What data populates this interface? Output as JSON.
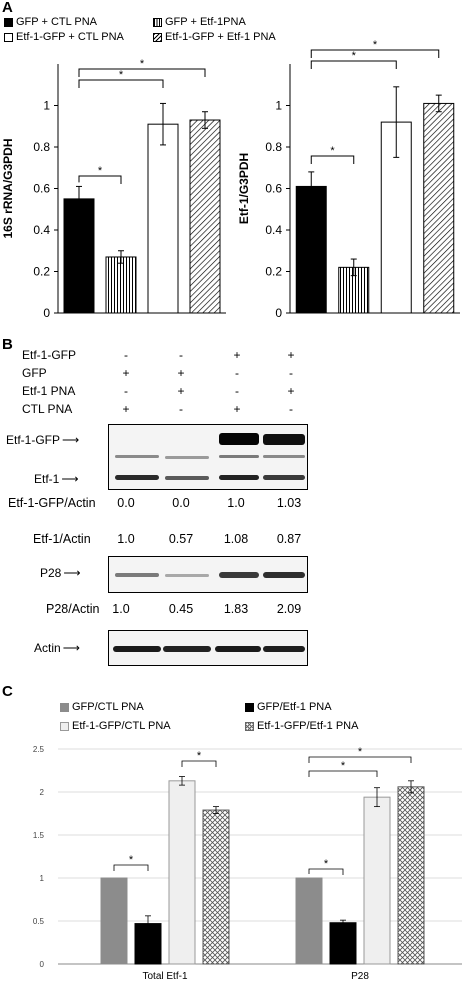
{
  "panels": {
    "a": "A",
    "b": "B",
    "c": "C"
  },
  "panelA": {
    "legend": [
      {
        "label": "GFP + CTL PNA",
        "style": "black"
      },
      {
        "label": "GFP + Etf-1PNA",
        "style": "vstripe"
      },
      {
        "label": "Etf-1-GFP + CTL PNA",
        "style": "white"
      },
      {
        "label": "Etf-1-GFP + Etf-1 PNA",
        "style": "dstripe"
      }
    ]
  },
  "panelB": {
    "treatments": [
      {
        "label": "Etf-1-GFP",
        "values": [
          "-",
          "-",
          "+",
          "+"
        ]
      },
      {
        "label": "GFP",
        "values": [
          "+",
          "+",
          "-",
          "-"
        ]
      },
      {
        "label": "Etf-1 PNA",
        "values": [
          "-",
          "+",
          "-",
          "+"
        ]
      },
      {
        "label": "CTL PNA",
        "values": [
          "+",
          "-",
          "+",
          "-"
        ]
      }
    ],
    "blot_labels": {
      "etf1gfp": "Etf-1-GFP",
      "etf1": "Etf-1",
      "p28": "P28",
      "actin": "Actin"
    },
    "ratios": [
      {
        "label": "Etf-1-GFP/Actin",
        "values": [
          "0.0",
          "0.0",
          "1.0",
          "1.03"
        ]
      },
      {
        "label": "Etf-1/Actin",
        "values": [
          "1.0",
          "0.57",
          "1.08",
          "0.87"
        ]
      },
      {
        "label": "P28/Actin",
        "values": [
          "1.0",
          "0.45",
          "1.83",
          "2.09"
        ]
      }
    ]
  },
  "panelC": {
    "legend": [
      {
        "label": "GFP/CTL PNA",
        "style": "gray"
      },
      {
        "label": "GFP/Etf-1 PNA",
        "style": "black"
      },
      {
        "label": "Etf-1-GFP/CTL PNA",
        "style": "lightgray"
      },
      {
        "label": "Etf-1-GFP/Etf-1 PNA",
        "style": "cross"
      }
    ]
  },
  "chart_data": [
    {
      "type": "bar",
      "title": "",
      "xlabel": "",
      "ylabel": "16S rRNA/G3PDH",
      "ylim": [
        0,
        1.2
      ],
      "yticks": [
        "0",
        "0.2",
        "0.4",
        "0.6",
        "0.8",
        "1"
      ],
      "categories": [
        "GFP + CTL PNA",
        "GFP + Etf-1PNA",
        "Etf-1-GFP + CTL PNA",
        "Etf-1-GFP + Etf-1 PNA"
      ],
      "values": [
        0.55,
        0.27,
        0.91,
        0.93
      ],
      "errors": [
        0.06,
        0.03,
        0.1,
        0.04
      ],
      "bar_styles": [
        "black",
        "vstripe",
        "white",
        "dstripe"
      ],
      "significance": [
        {
          "from": 0,
          "to": 1,
          "label": "*"
        },
        {
          "from": 0,
          "to": 2,
          "label": "*"
        },
        {
          "from": 0,
          "to": 3,
          "label": "*"
        }
      ],
      "grid": false
    },
    {
      "type": "bar",
      "title": "",
      "xlabel": "",
      "ylabel": "Etf-1/G3PDH",
      "ylim": [
        0,
        1.2
      ],
      "yticks": [
        "0",
        "0.2",
        "0.4",
        "0.6",
        "0.8",
        "1"
      ],
      "categories": [
        "GFP + CTL PNA",
        "GFP + Etf-1PNA",
        "Etf-1-GFP + CTL PNA",
        "Etf-1-GFP + Etf-1 PNA"
      ],
      "values": [
        0.61,
        0.22,
        0.92,
        1.01
      ],
      "errors": [
        0.07,
        0.04,
        0.17,
        0.04
      ],
      "bar_styles": [
        "black",
        "vstripe",
        "white",
        "dstripe"
      ],
      "significance": [
        {
          "from": 0,
          "to": 1,
          "label": "*"
        },
        {
          "from": 0,
          "to": 2,
          "label": "*"
        },
        {
          "from": 0,
          "to": 3,
          "label": "*"
        }
      ],
      "grid": false
    },
    {
      "type": "bar",
      "title": "",
      "xlabel": "",
      "ylabel": "",
      "ylim": [
        0,
        2.5
      ],
      "yticks": [
        "0",
        "0.5",
        "1",
        "1.5",
        "2",
        "2.5"
      ],
      "categories": [
        "Total Etf-1",
        "P28"
      ],
      "series": [
        {
          "name": "GFP/CTL PNA",
          "values": [
            1.0,
            1.0
          ],
          "errors": [
            0,
            0
          ]
        },
        {
          "name": "GFP/Etf-1 PNA",
          "values": [
            0.47,
            0.48
          ],
          "errors": [
            0.09,
            0.03
          ]
        },
        {
          "name": "Etf-1-GFP/CTL PNA",
          "values": [
            2.13,
            1.94
          ],
          "errors": [
            0.05,
            0.11
          ]
        },
        {
          "name": "Etf-1-GFP/Etf-1 PNA",
          "values": [
            1.79,
            2.06
          ],
          "errors": [
            0.04,
            0.07
          ]
        }
      ],
      "significance": [
        {
          "group": 0,
          "from": 0,
          "to": 1,
          "label": "*"
        },
        {
          "group": 0,
          "from": 2,
          "to": 3,
          "label": "*"
        },
        {
          "group": 1,
          "from": 0,
          "to": 1,
          "label": "*"
        },
        {
          "group": 1,
          "from": 0,
          "to": 2,
          "label": "*"
        },
        {
          "group": 1,
          "from": 0,
          "to": 3,
          "label": "*"
        }
      ],
      "grid": true
    }
  ]
}
